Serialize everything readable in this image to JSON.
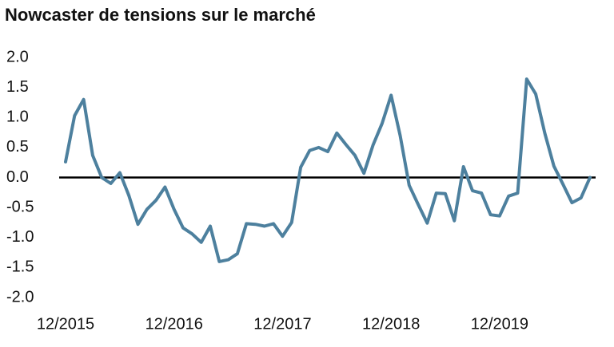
{
  "chart_data": {
    "type": "line",
    "title": "Nowcaster de tensions sur le marché",
    "x": [
      "12/2015",
      "01/2016",
      "02/2016",
      "03/2016",
      "04/2016",
      "05/2016",
      "06/2016",
      "07/2016",
      "08/2016",
      "09/2016",
      "10/2016",
      "11/2016",
      "12/2016",
      "01/2017",
      "02/2017",
      "03/2017",
      "04/2017",
      "05/2017",
      "06/2017",
      "07/2017",
      "08/2017",
      "09/2017",
      "10/2017",
      "11/2017",
      "12/2017",
      "01/2018",
      "02/2018",
      "03/2018",
      "04/2018",
      "05/2018",
      "06/2018",
      "07/2018",
      "08/2018",
      "09/2018",
      "10/2018",
      "11/2018",
      "12/2018",
      "01/2019",
      "02/2019",
      "03/2019",
      "04/2019",
      "05/2019",
      "06/2019",
      "07/2019",
      "08/2019",
      "09/2019",
      "10/2019",
      "11/2019",
      "12/2019",
      "01/2020",
      "02/2020",
      "03/2020",
      "04/2020",
      "05/2020",
      "06/2020",
      "07/2020",
      "08/2020",
      "09/2020",
      "10/2020"
    ],
    "series": [
      {
        "color": "#4d809e",
        "values": [
          0.26,
          1.03,
          1.3,
          0.37,
          0.0,
          -0.1,
          0.08,
          -0.3,
          -0.78,
          -0.53,
          -0.38,
          -0.16,
          -0.53,
          -0.84,
          -0.94,
          -1.08,
          -0.81,
          -1.4,
          -1.37,
          -1.27,
          -0.77,
          -0.78,
          -0.81,
          -0.77,
          -0.98,
          -0.75,
          0.17,
          0.45,
          0.5,
          0.43,
          0.74,
          0.55,
          0.37,
          0.07,
          0.54,
          0.9,
          1.37,
          0.7,
          -0.13,
          -0.45,
          -0.76,
          -0.26,
          -0.27,
          -0.72,
          0.18,
          -0.22,
          -0.26,
          -0.62,
          -0.64,
          -0.31,
          -0.26,
          1.64,
          1.39,
          0.74,
          0.19,
          -0.11,
          -0.42,
          -0.34,
          0.0
        ]
      }
    ],
    "xticks": [
      "12/2015",
      "12/2016",
      "12/2017",
      "12/2018",
      "12/2019"
    ],
    "ylim": [
      -2.0,
      2.0
    ],
    "yticks": [
      {
        "value": 2.0,
        "label": "2.0"
      },
      {
        "value": 1.5,
        "label": "1.5"
      },
      {
        "value": 1.0,
        "label": "1.0"
      },
      {
        "value": 0.5,
        "label": "0.5"
      },
      {
        "value": 0.0,
        "label": "0.0"
      },
      {
        "value": -0.5,
        "label": "-0.5"
      },
      {
        "value": -1.0,
        "label": "-1.0"
      },
      {
        "value": -1.5,
        "label": "-1.5"
      },
      {
        "value": -2.0,
        "label": "-2.0"
      }
    ],
    "grid": false
  }
}
